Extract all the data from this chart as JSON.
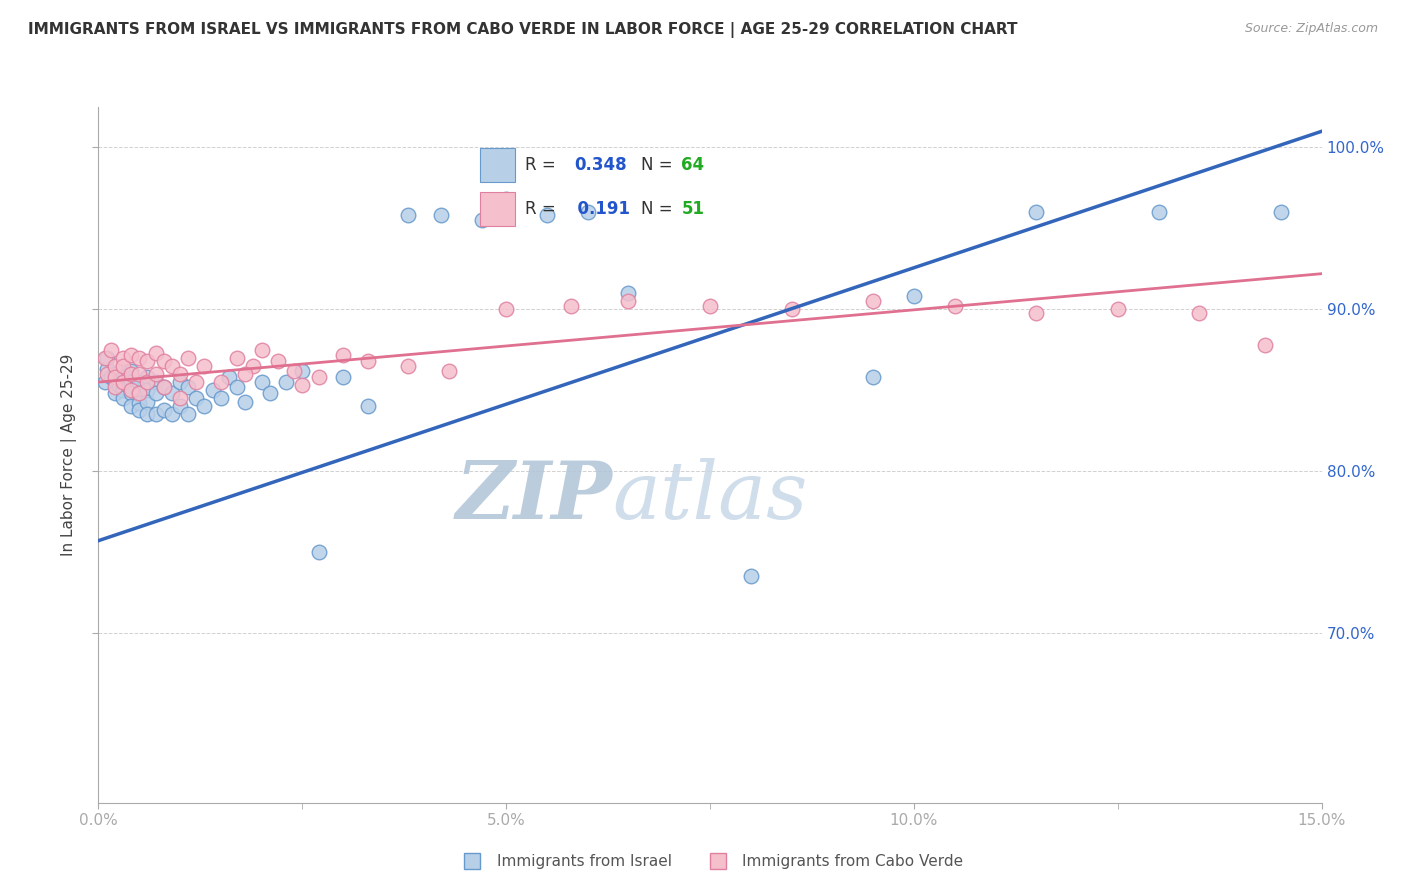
{
  "title": "IMMIGRANTS FROM ISRAEL VS IMMIGRANTS FROM CABO VERDE IN LABOR FORCE | AGE 25-29 CORRELATION CHART",
  "source": "Source: ZipAtlas.com",
  "ylabel": "In Labor Force | Age 25-29",
  "xlim": [
    0.0,
    0.15
  ],
  "ylim": [
    0.595,
    1.025
  ],
  "xtick_labels": [
    "0.0%",
    "",
    "5.0%",
    "",
    "10.0%",
    "",
    "15.0%"
  ],
  "xtick_vals": [
    0.0,
    0.025,
    0.05,
    0.075,
    0.1,
    0.125,
    0.15
  ],
  "ytick_labels": [
    "70.0%",
    "80.0%",
    "90.0%",
    "100.0%"
  ],
  "ytick_vals": [
    0.7,
    0.8,
    0.9,
    1.0
  ],
  "israel_color": "#b8cfe8",
  "israel_edge_color": "#6699cc",
  "cabo_color": "#f5bfcc",
  "cabo_edge_color": "#e080a0",
  "israel_line_color": "#3366bb",
  "cabo_line_color": "#e07090",
  "israel_R": 0.348,
  "israel_N": 64,
  "cabo_R": 0.191,
  "cabo_N": 51,
  "legend_R_color": "#2255cc",
  "legend_N_color": "#22aa22",
  "watermark_zip": "ZIP",
  "watermark_atlas": "atlas",
  "watermark_color_zip": "#b8c8d8",
  "watermark_color_atlas": "#c8d8e8",
  "israel_x": [
    0.0008,
    0.001,
    0.001,
    0.0015,
    0.002,
    0.002,
    0.002,
    0.0025,
    0.003,
    0.003,
    0.003,
    0.003,
    0.003,
    0.004,
    0.004,
    0.004,
    0.004,
    0.004,
    0.005,
    0.005,
    0.005,
    0.005,
    0.006,
    0.006,
    0.006,
    0.006,
    0.007,
    0.007,
    0.007,
    0.008,
    0.008,
    0.009,
    0.009,
    0.01,
    0.01,
    0.011,
    0.011,
    0.012,
    0.013,
    0.014,
    0.015,
    0.016,
    0.017,
    0.018,
    0.02,
    0.021,
    0.023,
    0.025,
    0.027,
    0.03,
    0.033,
    0.038,
    0.042,
    0.047,
    0.05,
    0.055,
    0.06,
    0.065,
    0.08,
    0.095,
    0.1,
    0.115,
    0.13,
    0.145
  ],
  "israel_y": [
    0.855,
    0.863,
    0.87,
    0.858,
    0.86,
    0.855,
    0.848,
    0.853,
    0.862,
    0.852,
    0.858,
    0.85,
    0.845,
    0.862,
    0.855,
    0.85,
    0.848,
    0.84,
    0.855,
    0.848,
    0.842,
    0.838,
    0.858,
    0.85,
    0.843,
    0.835,
    0.855,
    0.848,
    0.835,
    0.852,
    0.838,
    0.848,
    0.835,
    0.855,
    0.84,
    0.852,
    0.835,
    0.845,
    0.84,
    0.85,
    0.845,
    0.858,
    0.852,
    0.843,
    0.855,
    0.848,
    0.855,
    0.862,
    0.75,
    0.858,
    0.84,
    0.958,
    0.958,
    0.955,
    0.968,
    0.958,
    0.96,
    0.91,
    0.735,
    0.858,
    0.908,
    0.96,
    0.96,
    0.96
  ],
  "cabo_x": [
    0.0008,
    0.001,
    0.0015,
    0.002,
    0.002,
    0.002,
    0.003,
    0.003,
    0.003,
    0.004,
    0.004,
    0.004,
    0.005,
    0.005,
    0.005,
    0.006,
    0.006,
    0.007,
    0.007,
    0.008,
    0.008,
    0.009,
    0.01,
    0.011,
    0.012,
    0.013,
    0.015,
    0.017,
    0.019,
    0.02,
    0.022,
    0.024,
    0.027,
    0.03,
    0.033,
    0.038,
    0.043,
    0.05,
    0.058,
    0.065,
    0.075,
    0.085,
    0.095,
    0.105,
    0.115,
    0.125,
    0.135,
    0.143,
    0.01,
    0.018,
    0.025
  ],
  "cabo_y": [
    0.87,
    0.86,
    0.875,
    0.865,
    0.858,
    0.852,
    0.87,
    0.865,
    0.855,
    0.872,
    0.86,
    0.85,
    0.87,
    0.86,
    0.848,
    0.868,
    0.855,
    0.873,
    0.86,
    0.868,
    0.852,
    0.865,
    0.86,
    0.87,
    0.855,
    0.865,
    0.855,
    0.87,
    0.865,
    0.875,
    0.868,
    0.862,
    0.858,
    0.872,
    0.868,
    0.865,
    0.862,
    0.9,
    0.902,
    0.905,
    0.902,
    0.9,
    0.905,
    0.902,
    0.898,
    0.9,
    0.898,
    0.878,
    0.845,
    0.86,
    0.853
  ]
}
